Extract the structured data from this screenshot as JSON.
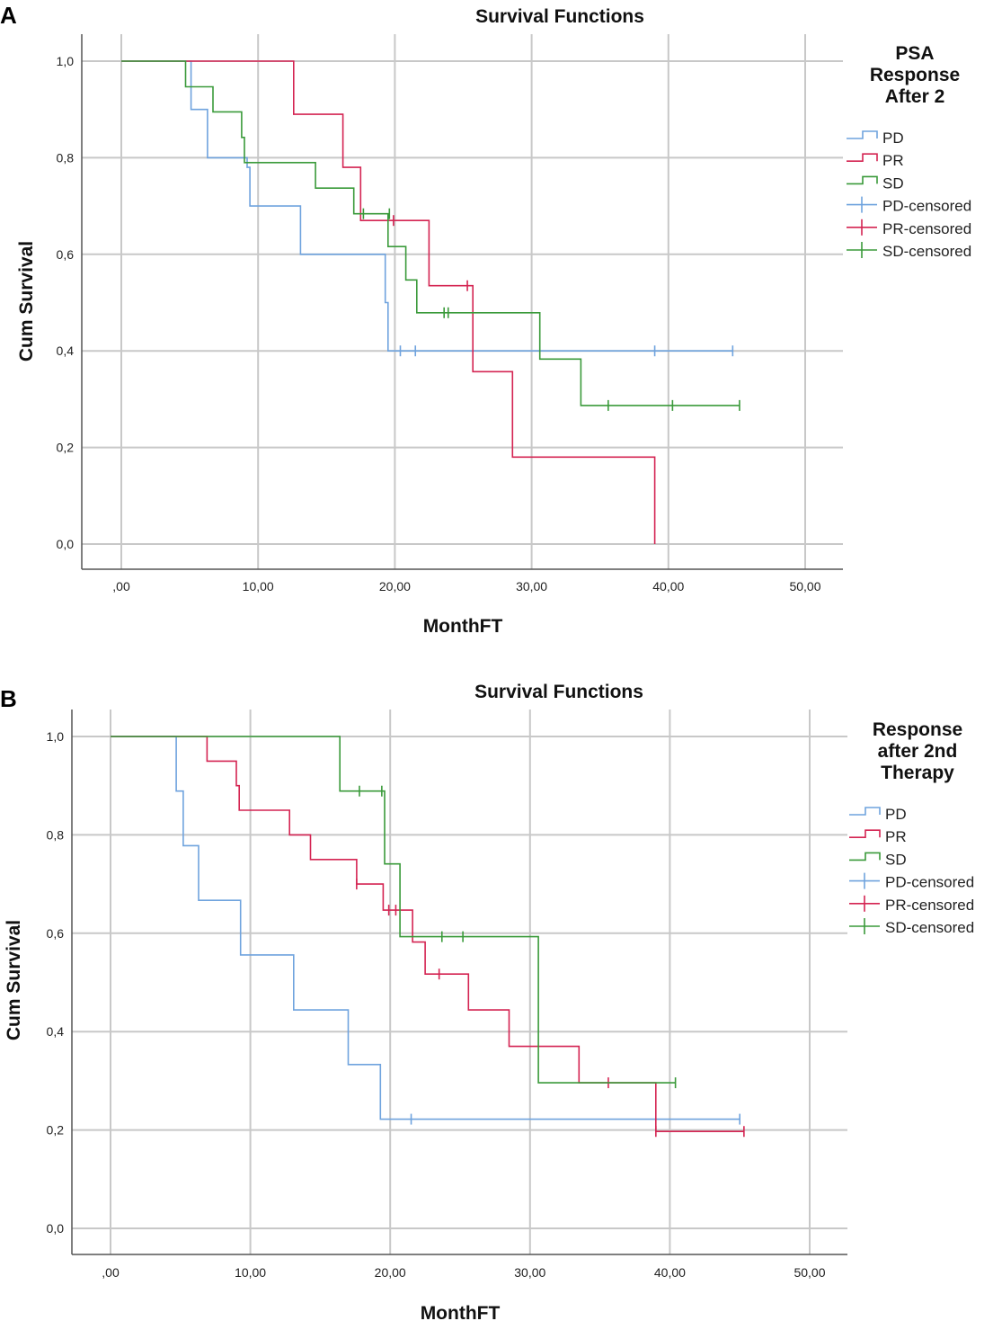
{
  "chart_data": [
    {
      "panel": "A",
      "type": "line",
      "subtype": "kaplan-meier-step",
      "title": "Survival Functions",
      "xlabel": "MonthFT",
      "ylabel": "Cum Survival",
      "xlim": [
        -3,
        52
      ],
      "ylim": [
        -0.05,
        1.05
      ],
      "x_ticks": [
        0,
        10,
        20,
        30,
        40,
        50
      ],
      "x_tick_labels": [
        ",00",
        "10,00",
        "20,00",
        "30,00",
        "40,00",
        "50,00"
      ],
      "y_ticks": [
        0,
        0.2,
        0.4,
        0.6,
        0.8,
        1.0
      ],
      "y_tick_labels": [
        "0,0",
        "0,2",
        "0,4",
        "0,6",
        "0,8",
        "1,0"
      ],
      "grid": true,
      "legend_title": [
        "PSA",
        "Response",
        "After 2"
      ],
      "legend_position": "right",
      "series": [
        {
          "name": "PD",
          "color": "#6fa3de",
          "steps": [
            [
              0,
              1.0
            ],
            [
              5.1,
              1.0
            ],
            [
              5.1,
              0.9
            ],
            [
              6.3,
              0.9
            ],
            [
              6.3,
              0.8
            ],
            [
              9.2,
              0.8
            ],
            [
              9.2,
              0.78
            ],
            [
              9.4,
              0.78
            ],
            [
              9.4,
              0.7
            ],
            [
              13.1,
              0.7
            ],
            [
              13.1,
              0.6
            ],
            [
              19.3,
              0.6
            ],
            [
              19.3,
              0.5
            ],
            [
              19.5,
              0.5
            ],
            [
              19.5,
              0.4
            ],
            [
              44.7,
              0.4
            ]
          ],
          "censored": [
            [
              20.4,
              0.4
            ],
            [
              21.5,
              0.4
            ],
            [
              39.0,
              0.4
            ],
            [
              44.7,
              0.4
            ]
          ]
        },
        {
          "name": "PR",
          "color": "#d42452",
          "steps": [
            [
              0,
              1.0
            ],
            [
              12.6,
              1.0
            ],
            [
              12.6,
              0.89
            ],
            [
              16.2,
              0.89
            ],
            [
              16.2,
              0.78
            ],
            [
              17.5,
              0.78
            ],
            [
              17.5,
              0.67
            ],
            [
              22.5,
              0.67
            ],
            [
              22.5,
              0.535
            ],
            [
              25.7,
              0.535
            ],
            [
              25.7,
              0.357
            ],
            [
              28.6,
              0.357
            ],
            [
              28.6,
              0.18
            ],
            [
              39.0,
              0.18
            ],
            [
              39.0,
              0.0
            ]
          ],
          "censored": [
            [
              19.9,
              0.67
            ],
            [
              25.3,
              0.535
            ]
          ]
        },
        {
          "name": "SD",
          "color": "#3a9a3a",
          "steps": [
            [
              0,
              1.0
            ],
            [
              4.7,
              1.0
            ],
            [
              4.7,
              0.947
            ],
            [
              6.7,
              0.947
            ],
            [
              6.7,
              0.895
            ],
            [
              8.8,
              0.895
            ],
            [
              8.8,
              0.842
            ],
            [
              9.0,
              0.842
            ],
            [
              9.0,
              0.79
            ],
            [
              14.2,
              0.79
            ],
            [
              14.2,
              0.737
            ],
            [
              17.0,
              0.737
            ],
            [
              17.0,
              0.684
            ],
            [
              19.5,
              0.684
            ],
            [
              19.5,
              0.616
            ],
            [
              20.8,
              0.616
            ],
            [
              20.8,
              0.547
            ],
            [
              21.6,
              0.547
            ],
            [
              21.6,
              0.479
            ],
            [
              30.6,
              0.479
            ],
            [
              30.6,
              0.383
            ],
            [
              33.6,
              0.383
            ],
            [
              33.6,
              0.287
            ],
            [
              45.2,
              0.287
            ]
          ],
          "censored": [
            [
              17.7,
              0.684
            ],
            [
              19.6,
              0.684
            ],
            [
              23.6,
              0.479
            ],
            [
              23.9,
              0.479
            ],
            [
              35.6,
              0.287
            ],
            [
              40.3,
              0.287
            ],
            [
              45.2,
              0.287
            ]
          ]
        }
      ],
      "legend_entries": [
        "PD",
        "PR",
        "SD",
        "PD-censored",
        "PR-censored",
        "SD-censored"
      ]
    },
    {
      "panel": "B",
      "type": "line",
      "subtype": "kaplan-meier-step",
      "title": "Survival Functions",
      "xlabel": "MonthFT",
      "ylabel": "Cum Survival",
      "xlim": [
        -3,
        52
      ],
      "ylim": [
        -0.05,
        1.05
      ],
      "x_ticks": [
        0,
        10,
        20,
        30,
        40,
        50
      ],
      "x_tick_labels": [
        ",00",
        "10,00",
        "20,00",
        "30,00",
        "40,00",
        "50,00"
      ],
      "y_ticks": [
        0,
        0.2,
        0.4,
        0.6,
        0.8,
        1.0
      ],
      "y_tick_labels": [
        "0,0",
        "0,2",
        "0,4",
        "0,6",
        "0,8",
        "1,0"
      ],
      "grid": true,
      "legend_title": [
        "Response",
        "after 2nd",
        "Therapy"
      ],
      "legend_position": "right",
      "series": [
        {
          "name": "PD",
          "color": "#6fa3de",
          "steps": [
            [
              0,
              1.0
            ],
            [
              4.7,
              1.0
            ],
            [
              4.7,
              0.889
            ],
            [
              5.2,
              0.889
            ],
            [
              5.2,
              0.778
            ],
            [
              6.3,
              0.778
            ],
            [
              6.3,
              0.667
            ],
            [
              9.3,
              0.667
            ],
            [
              9.3,
              0.556
            ],
            [
              13.1,
              0.556
            ],
            [
              13.1,
              0.444
            ],
            [
              17.0,
              0.444
            ],
            [
              17.0,
              0.333
            ],
            [
              19.3,
              0.333
            ],
            [
              19.3,
              0.222
            ],
            [
              45.0,
              0.222
            ]
          ],
          "censored": [
            [
              21.5,
              0.222
            ],
            [
              45.0,
              0.222
            ]
          ]
        },
        {
          "name": "PR",
          "color": "#d42452",
          "steps": [
            [
              0,
              1.0
            ],
            [
              6.9,
              1.0
            ],
            [
              6.9,
              0.95
            ],
            [
              9.0,
              0.95
            ],
            [
              9.0,
              0.9
            ],
            [
              9.2,
              0.9
            ],
            [
              9.2,
              0.85
            ],
            [
              12.8,
              0.85
            ],
            [
              12.8,
              0.8
            ],
            [
              14.3,
              0.8
            ],
            [
              14.3,
              0.75
            ],
            [
              17.6,
              0.75
            ],
            [
              17.6,
              0.7
            ],
            [
              19.5,
              0.7
            ],
            [
              19.5,
              0.647
            ],
            [
              21.6,
              0.647
            ],
            [
              21.6,
              0.582
            ],
            [
              22.5,
              0.582
            ],
            [
              22.5,
              0.517
            ],
            [
              25.6,
              0.517
            ],
            [
              25.6,
              0.444
            ],
            [
              28.5,
              0.444
            ],
            [
              28.5,
              0.37
            ],
            [
              33.5,
              0.37
            ],
            [
              33.5,
              0.296
            ],
            [
              39.0,
              0.296
            ],
            [
              39.0,
              0.197
            ],
            [
              45.3,
              0.197
            ]
          ],
          "censored": [
            [
              17.6,
              0.7
            ],
            [
              19.9,
              0.647
            ],
            [
              20.4,
              0.647
            ],
            [
              23.5,
              0.517
            ],
            [
              35.6,
              0.296
            ],
            [
              39.0,
              0.197
            ],
            [
              45.3,
              0.197
            ]
          ]
        },
        {
          "name": "SD",
          "color": "#3a9a3a",
          "steps": [
            [
              0,
              1.0
            ],
            [
              16.4,
              1.0
            ],
            [
              16.4,
              0.889
            ],
            [
              19.6,
              0.889
            ],
            [
              19.6,
              0.741
            ],
            [
              20.7,
              0.741
            ],
            [
              20.7,
              0.593
            ],
            [
              30.6,
              0.593
            ],
            [
              30.6,
              0.296
            ],
            [
              40.4,
              0.296
            ]
          ],
          "censored": [
            [
              17.8,
              0.889
            ],
            [
              19.4,
              0.889
            ],
            [
              23.7,
              0.593
            ],
            [
              25.2,
              0.593
            ],
            [
              40.4,
              0.296
            ]
          ]
        }
      ],
      "legend_entries": [
        "PD",
        "PR",
        "SD",
        "PD-censored",
        "PR-censored",
        "SD-censored"
      ]
    }
  ]
}
